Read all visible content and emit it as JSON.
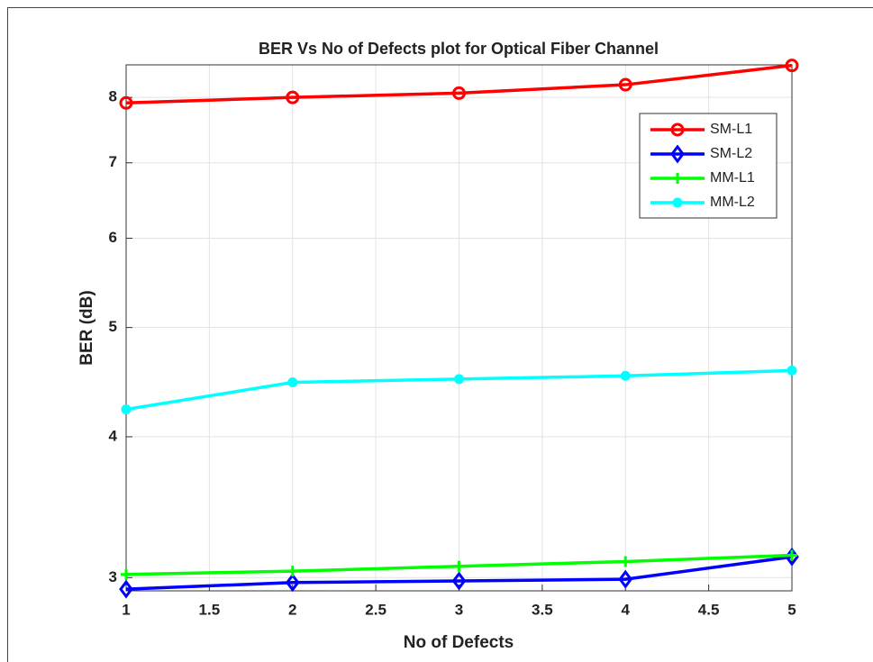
{
  "chart_data": {
    "type": "line",
    "title": "BER Vs No of Defects plot for Optical Fiber Channel",
    "xlabel": "No of Defects",
    "ylabel": "BER (dB)",
    "x": [
      1,
      2,
      3,
      4,
      5
    ],
    "xlim": [
      1,
      5
    ],
    "xticks": [
      1,
      1.5,
      2,
      2.5,
      3,
      3.5,
      4,
      4.5,
      5
    ],
    "ylim": [
      2.92,
      8.55
    ],
    "yticks": [
      3,
      4,
      5,
      6,
      7,
      8
    ],
    "yscale": "log",
    "grid": true,
    "legend": "northeast",
    "series": [
      {
        "name": "SM-L1",
        "color": "#ff0000",
        "marker": "circle",
        "values": [
          7.91,
          8.0,
          8.07,
          8.21,
          8.54
        ]
      },
      {
        "name": "SM-L2",
        "color": "#0000ff",
        "marker": "diamond",
        "values": [
          2.93,
          2.97,
          2.98,
          2.99,
          3.13
        ]
      },
      {
        "name": "MM-L1",
        "color": "#00ff00",
        "marker": "plus",
        "values": [
          3.02,
          3.04,
          3.07,
          3.1,
          3.14
        ]
      },
      {
        "name": "MM-L2",
        "color": "#00ffff",
        "marker": "dot",
        "values": [
          4.23,
          4.47,
          4.5,
          4.53,
          4.58
        ]
      }
    ]
  }
}
